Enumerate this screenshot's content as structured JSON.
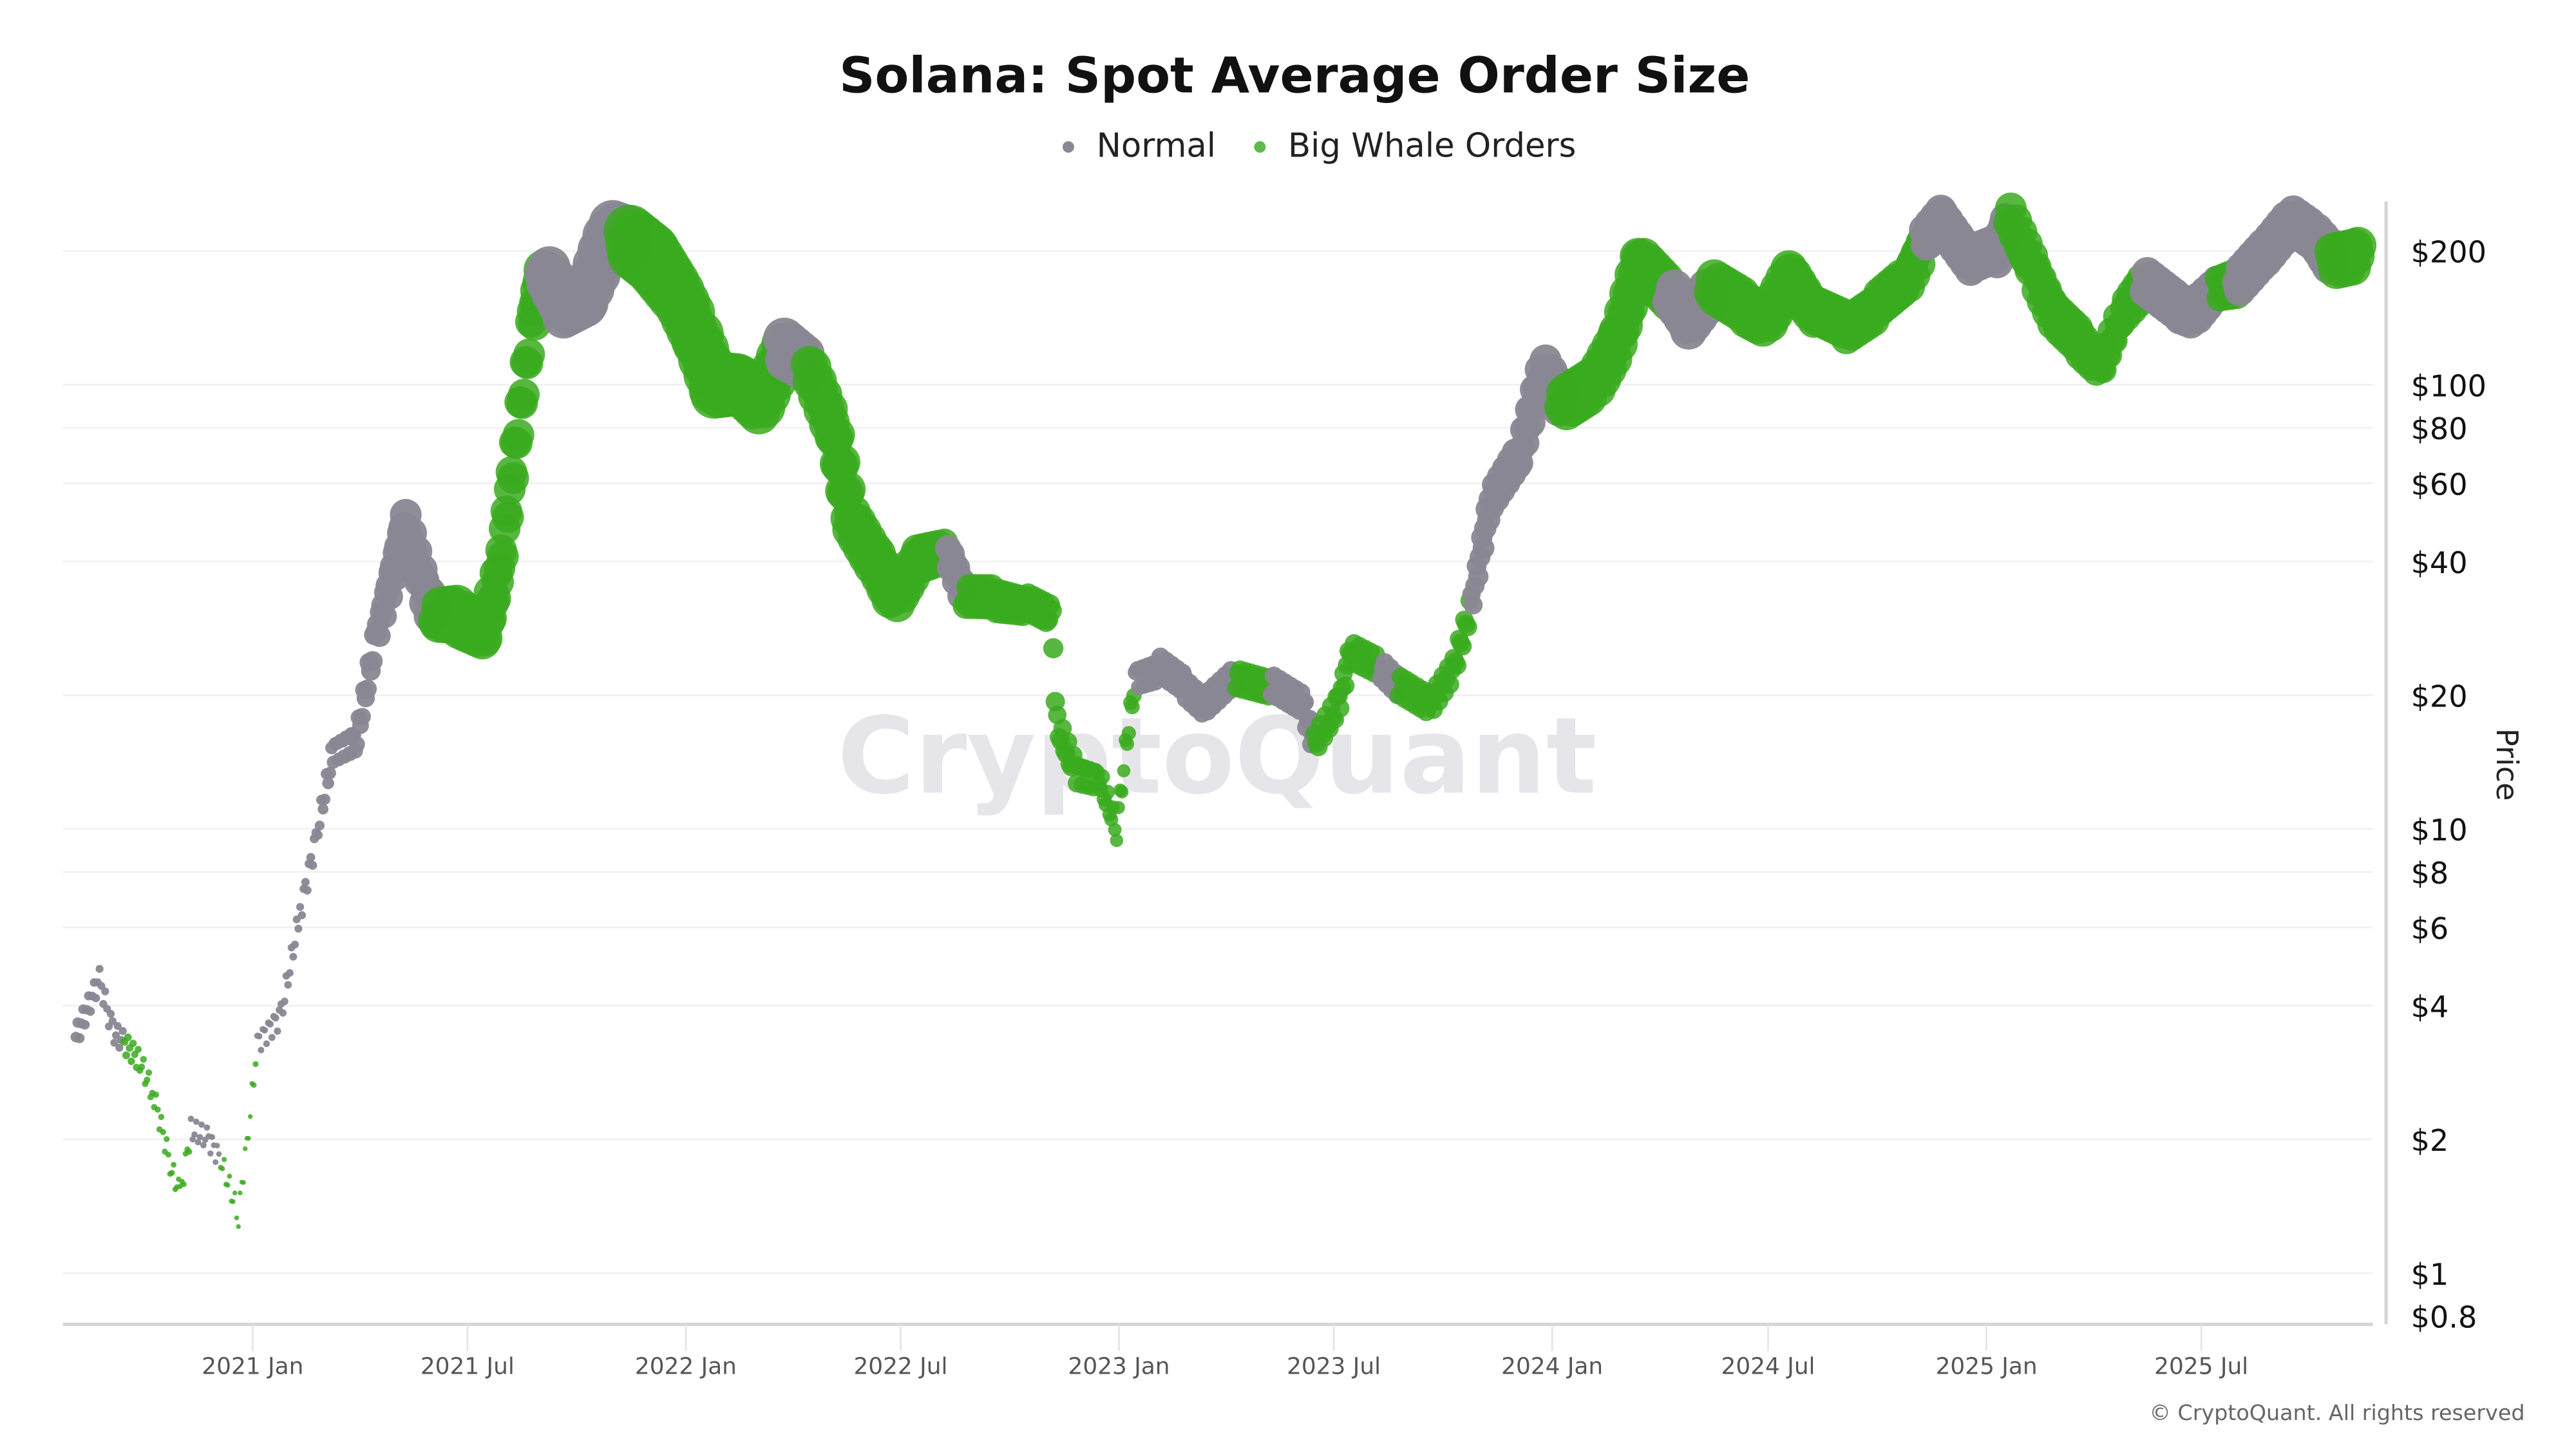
{
  "chart_data": {
    "type": "scatter",
    "title": "Solana: Spot Average Order Size",
    "ylabel": "Price",
    "xlabel": "",
    "y_scale": "log",
    "ylim": [
      0.8,
      260
    ],
    "xlim": [
      "2020-07-25",
      "2025-11-17"
    ],
    "grid": true,
    "legend_position": "top-center",
    "watermark": "CryptoQuant",
    "credit": "© CryptoQuant. All rights reserved",
    "x_ticks": [
      "2021 Jan",
      "2021 Jul",
      "2022 Jan",
      "2022 Jul",
      "2023 Jan",
      "2023 Jul",
      "2024 Jan",
      "2024 Jul",
      "2025 Jan",
      "2025 Jul"
    ],
    "x_tick_dates": [
      "2021-01-01",
      "2021-07-01",
      "2022-01-01",
      "2022-07-01",
      "2023-01-01",
      "2023-07-01",
      "2024-01-01",
      "2024-07-01",
      "2025-01-01",
      "2025-07-01"
    ],
    "y_ticks": [
      {
        "value": 200,
        "label": "$200"
      },
      {
        "value": 100,
        "label": "$100"
      },
      {
        "value": 80,
        "label": "$80"
      },
      {
        "value": 60,
        "label": "$60"
      },
      {
        "value": 40,
        "label": "$40"
      },
      {
        "value": 20,
        "label": "$20"
      },
      {
        "value": 10,
        "label": "$10"
      },
      {
        "value": 8,
        "label": "$8"
      },
      {
        "value": 6,
        "label": "$6"
      },
      {
        "value": 4,
        "label": "$4"
      },
      {
        "value": 2,
        "label": "$2"
      },
      {
        "value": 1,
        "label": "$1"
      },
      {
        "value": 0.8,
        "label": "$0.8"
      }
    ],
    "series": [
      {
        "name": "Normal",
        "color": "#8a8794"
      },
      {
        "name": "Big Whale Orders",
        "color": "#3aaa1e"
      }
    ],
    "points_columns": [
      "date",
      "price",
      "category",
      "relative_size"
    ],
    "points": [
      [
        "2020-08-05",
        3.4,
        "Normal",
        2
      ],
      [
        "2020-08-25",
        4.6,
        "Normal",
        1.5
      ],
      [
        "2020-09-05",
        3.5,
        "Normal",
        1.5
      ],
      [
        "2020-09-15",
        3.3,
        "Big Whale Orders",
        1.5
      ],
      [
        "2020-09-28",
        3.0,
        "Big Whale Orders",
        1.3
      ],
      [
        "2020-10-10",
        2.5,
        "Big Whale Orders",
        1.2
      ],
      [
        "2020-10-25",
        1.7,
        "Big Whale Orders",
        1.1
      ],
      [
        "2020-11-01",
        1.5,
        "Big Whale Orders",
        1
      ],
      [
        "2020-11-10",
        2.1,
        "Normal",
        1.2
      ],
      [
        "2020-11-25",
        2.0,
        "Normal",
        1.2
      ],
      [
        "2020-12-05",
        1.8,
        "Big Whale Orders",
        1
      ],
      [
        "2020-12-20",
        1.35,
        "Big Whale Orders",
        0.9
      ],
      [
        "2020-12-30",
        2.3,
        "Big Whale Orders",
        0.9
      ],
      [
        "2021-01-05",
        3.3,
        "Normal",
        1.2
      ],
      [
        "2021-01-25",
        3.8,
        "Normal",
        1.4
      ],
      [
        "2021-02-10",
        6.5,
        "Normal",
        1.5
      ],
      [
        "2021-02-25",
        10,
        "Normal",
        1.8
      ],
      [
        "2021-03-10",
        15,
        "Normal",
        2.5
      ],
      [
        "2021-03-30",
        16,
        "Normal",
        3
      ],
      [
        "2021-04-15",
        27,
        "Normal",
        4
      ],
      [
        "2021-05-10",
        48,
        "Normal",
        6
      ],
      [
        "2021-05-25",
        35,
        "Normal",
        6
      ],
      [
        "2021-06-05",
        30,
        "Big Whale Orders",
        7
      ],
      [
        "2021-06-25",
        30,
        "Big Whale Orders",
        8
      ],
      [
        "2021-07-15",
        28,
        "Big Whale Orders",
        7
      ],
      [
        "2021-07-28",
        38,
        "Big Whale Orders",
        6
      ],
      [
        "2021-08-10",
        70,
        "Big Whale Orders",
        6
      ],
      [
        "2021-08-25",
        140,
        "Big Whale Orders",
        6
      ],
      [
        "2021-09-05",
        180,
        "Normal",
        8
      ],
      [
        "2021-09-20",
        150,
        "Normal",
        8
      ],
      [
        "2021-10-10",
        160,
        "Normal",
        8
      ],
      [
        "2021-10-30",
        220,
        "Normal",
        9
      ],
      [
        "2021-11-15",
        210,
        "Big Whale Orders",
        10
      ],
      [
        "2021-12-05",
        190,
        "Big Whale Orders",
        10
      ],
      [
        "2021-12-25",
        160,
        "Big Whale Orders",
        9
      ],
      [
        "2022-01-10",
        130,
        "Big Whale Orders",
        9
      ],
      [
        "2022-01-25",
        100,
        "Big Whale Orders",
        9
      ],
      [
        "2022-02-15",
        100,
        "Big Whale Orders",
        8
      ],
      [
        "2022-03-05",
        90,
        "Big Whale Orders",
        8
      ],
      [
        "2022-03-25",
        120,
        "Normal",
        8
      ],
      [
        "2022-04-15",
        110,
        "Big Whale Orders",
        7
      ],
      [
        "2022-05-05",
        80,
        "Big Whale Orders",
        7
      ],
      [
        "2022-05-20",
        50,
        "Big Whale Orders",
        7
      ],
      [
        "2022-06-10",
        40,
        "Big Whale Orders",
        7
      ],
      [
        "2022-06-25",
        33,
        "Big Whale Orders",
        7
      ],
      [
        "2022-07-15",
        40,
        "Big Whale Orders",
        6
      ],
      [
        "2022-08-10",
        42,
        "Normal",
        5
      ],
      [
        "2022-08-25",
        33,
        "Big Whale Orders",
        5
      ],
      [
        "2022-09-20",
        33,
        "Big Whale Orders",
        5
      ],
      [
        "2022-10-15",
        32,
        "Big Whale Orders",
        4
      ],
      [
        "2022-11-05",
        30,
        "Big Whale Orders",
        4
      ],
      [
        "2022-11-10",
        17,
        "Big Whale Orders",
        3.5
      ],
      [
        "2022-11-25",
        13.5,
        "Big Whale Orders",
        3.5
      ],
      [
        "2022-12-15",
        13,
        "Big Whale Orders",
        3
      ],
      [
        "2022-12-30",
        10,
        "Big Whale Orders",
        2.5
      ],
      [
        "2023-01-05",
        14,
        "Big Whale Orders",
        2.5
      ],
      [
        "2023-01-15",
        22,
        "Normal",
        3
      ],
      [
        "2023-02-05",
        23,
        "Normal",
        3.5
      ],
      [
        "2023-02-25",
        21,
        "Normal",
        3.5
      ],
      [
        "2023-03-15",
        19,
        "Normal",
        3.5
      ],
      [
        "2023-04-10",
        22,
        "Big Whale Orders",
        3.5
      ],
      [
        "2023-05-10",
        21,
        "Normal",
        3.5
      ],
      [
        "2023-06-05",
        19,
        "Normal",
        3.5
      ],
      [
        "2023-06-15",
        15.5,
        "Big Whale Orders",
        3.5
      ],
      [
        "2023-07-05",
        19,
        "Big Whale Orders",
        3.5
      ],
      [
        "2023-07-15",
        25,
        "Big Whale Orders",
        3.5
      ],
      [
        "2023-08-10",
        23,
        "Normal",
        3.5
      ],
      [
        "2023-08-25",
        21,
        "Big Whale Orders",
        3.5
      ],
      [
        "2023-09-20",
        19,
        "Big Whale Orders",
        3.5
      ],
      [
        "2023-10-10",
        23,
        "Big Whale Orders",
        3.5
      ],
      [
        "2023-10-25",
        32,
        "Normal",
        3.5
      ],
      [
        "2023-11-10",
        55,
        "Normal",
        4.5
      ],
      [
        "2023-12-05",
        70,
        "Normal",
        5
      ],
      [
        "2023-12-25",
        110,
        "Normal",
        6
      ],
      [
        "2024-01-10",
        90,
        "Big Whale Orders",
        7
      ],
      [
        "2024-02-05",
        100,
        "Big Whale Orders",
        7
      ],
      [
        "2024-02-25",
        125,
        "Big Whale Orders",
        7
      ],
      [
        "2024-03-15",
        190,
        "Big Whale Orders",
        7
      ],
      [
        "2024-04-10",
        160,
        "Normal",
        7
      ],
      [
        "2024-04-25",
        140,
        "Normal",
        7
      ],
      [
        "2024-05-15",
        165,
        "Big Whale Orders",
        7
      ],
      [
        "2024-06-10",
        150,
        "Big Whale Orders",
        7
      ],
      [
        "2024-07-01",
        140,
        "Big Whale Orders",
        7
      ],
      [
        "2024-07-20",
        175,
        "Big Whale Orders",
        7
      ],
      [
        "2024-08-10",
        145,
        "Big Whale Orders",
        6
      ],
      [
        "2024-09-05",
        135,
        "Big Whale Orders",
        6
      ],
      [
        "2024-10-01",
        150,
        "Big Whale Orders",
        6
      ],
      [
        "2024-10-25",
        170,
        "Big Whale Orders",
        6
      ],
      [
        "2024-11-10",
        210,
        "Normal",
        6
      ],
      [
        "2024-11-25",
        235,
        "Normal",
        6
      ],
      [
        "2024-12-20",
        190,
        "Normal",
        6
      ],
      [
        "2025-01-10",
        200,
        "Normal",
        6
      ],
      [
        "2025-01-20",
        240,
        "Big Whale Orders",
        6
      ],
      [
        "2025-02-10",
        180,
        "Big Whale Orders",
        6
      ],
      [
        "2025-03-01",
        140,
        "Big Whale Orders",
        6
      ],
      [
        "2025-03-20",
        125,
        "Big Whale Orders",
        6
      ],
      [
        "2025-04-08",
        110,
        "Big Whale Orders",
        5
      ],
      [
        "2025-04-25",
        145,
        "Big Whale Orders",
        5
      ],
      [
        "2025-05-15",
        170,
        "Normal",
        6
      ],
      [
        "2025-06-10",
        150,
        "Normal",
        6
      ],
      [
        "2025-06-25",
        145,
        "Normal",
        6
      ],
      [
        "2025-07-15",
        165,
        "Big Whale Orders",
        5
      ],
      [
        "2025-08-01",
        170,
        "Normal",
        6
      ],
      [
        "2025-08-25",
        200,
        "Normal",
        6
      ],
      [
        "2025-09-15",
        235,
        "Normal",
        6
      ],
      [
        "2025-10-05",
        215,
        "Normal",
        6
      ],
      [
        "2025-10-20",
        190,
        "Big Whale Orders",
        7
      ],
      [
        "2025-11-10",
        195,
        "Big Whale Orders",
        7
      ]
    ]
  }
}
